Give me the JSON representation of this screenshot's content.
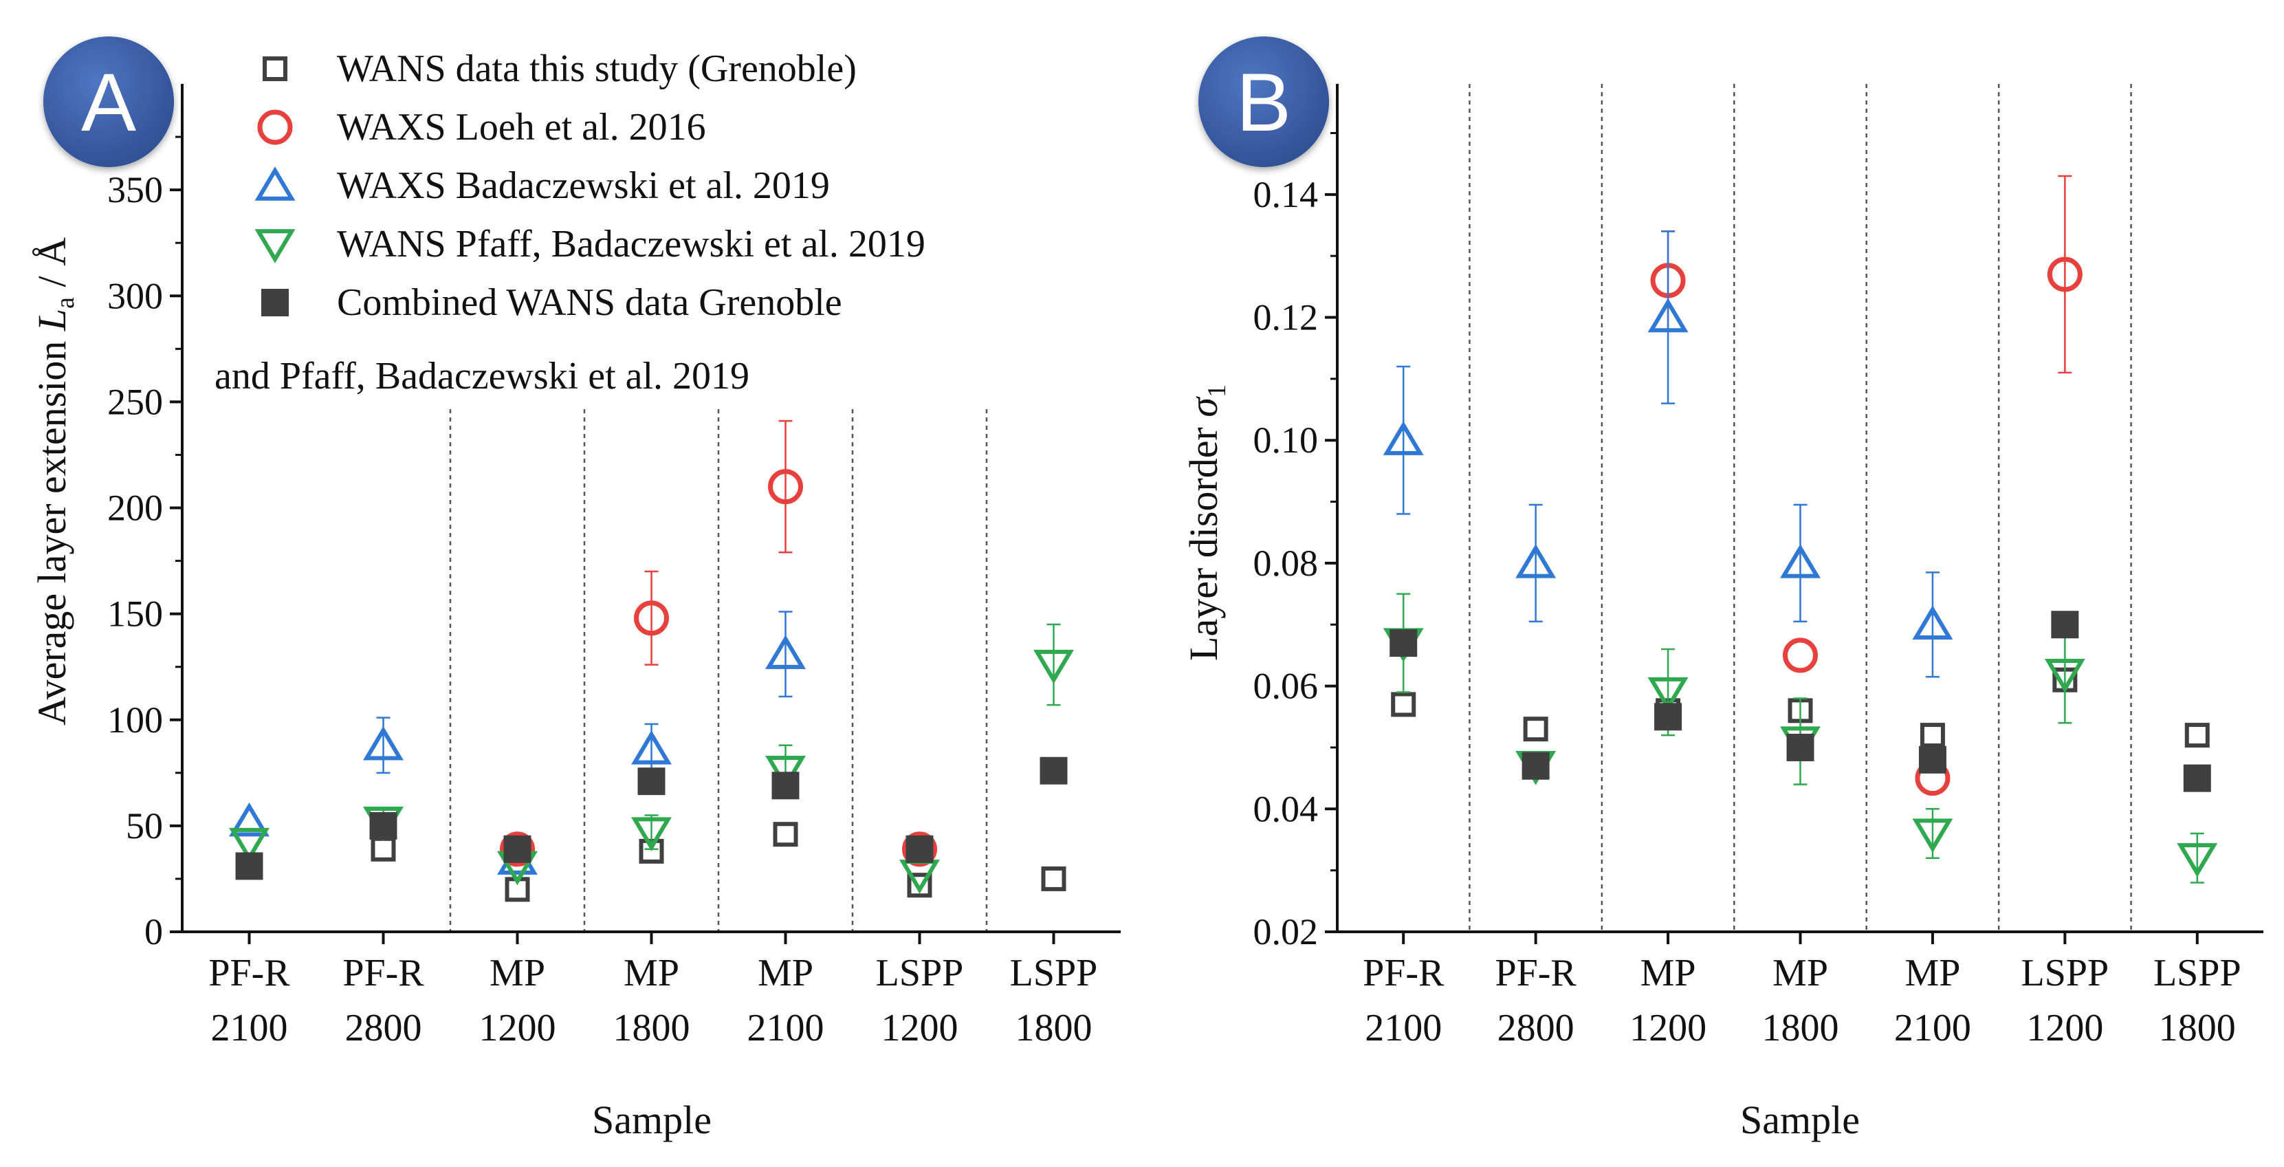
{
  "colors": {
    "wans_grenoble": "#404040",
    "waxs_loeh": "#e8403c",
    "waxs_badaczewski": "#2f78d6",
    "wans_pfaff": "#2fa84f",
    "combined": "#404040",
    "badge": "#3a5ea8",
    "divider": "#555555"
  },
  "legend": {
    "items": [
      {
        "key": "wans_grenoble",
        "label": "WANS data this study (Grenoble)",
        "marker": "open-square-icon"
      },
      {
        "key": "waxs_loeh",
        "label": "WAXS Loeh et al. 2016",
        "marker": "open-circle-icon"
      },
      {
        "key": "waxs_badaczewski",
        "label": "WAXS Badaczewski et al. 2019",
        "marker": "open-triangle-up-icon"
      },
      {
        "key": "wans_pfaff",
        "label": "WANS Pfaff, Badaczewski et al. 2019",
        "marker": "open-triangle-down-icon"
      },
      {
        "key": "combined",
        "label": "Combined WANS data Grenoble",
        "marker": "filled-square-icon"
      }
    ],
    "continuation": "and Pfaff, Badaczewski et al. 2019"
  },
  "chart_data": [
    {
      "panel": "A",
      "type": "scatter",
      "ylabel_main": "Average layer extension",
      "ylabel_symbol": "L",
      "ylabel_subscript": "a",
      "ylabel_unit": " / Å",
      "xlabel": "Sample",
      "ylim": [
        0,
        400
      ],
      "yticks": [
        0,
        50,
        100,
        150,
        200,
        250,
        300,
        350
      ],
      "categories": [
        [
          "PF-R",
          "2100"
        ],
        [
          "PF-R",
          "2800"
        ],
        [
          "MP",
          "1200"
        ],
        [
          "MP",
          "1800"
        ],
        [
          "MP",
          "2100"
        ],
        [
          "LSPP",
          "1200"
        ],
        [
          "LSPP",
          "1800"
        ]
      ],
      "dividers_after_index": [
        1,
        2,
        3,
        4,
        5
      ],
      "series": [
        {
          "key": "wans_grenoble",
          "name": "WANS data this study (Grenoble)",
          "values": [
            null,
            39,
            20,
            38,
            46,
            22,
            25
          ],
          "errors": [
            null,
            null,
            null,
            null,
            null,
            null,
            null
          ]
        },
        {
          "key": "waxs_loeh",
          "name": "WAXS Loeh et al. 2016",
          "values": [
            null,
            null,
            39,
            148,
            210,
            39,
            null
          ],
          "errors": [
            null,
            null,
            null,
            22,
            31,
            null,
            null
          ]
        },
        {
          "key": "waxs_badaczewski",
          "name": "WAXS Badaczewski et al. 2019",
          "values": [
            52,
            88,
            34,
            86,
            131,
            null,
            null
          ],
          "errors": [
            null,
            13,
            null,
            12,
            20,
            null,
            null
          ]
        },
        {
          "key": "wans_pfaff",
          "name": "WANS Pfaff, Badaczewski et al. 2019",
          "values": [
            42,
            52,
            31,
            47,
            76,
            27,
            126
          ],
          "errors": [
            null,
            6,
            null,
            8,
            12,
            null,
            19
          ]
        },
        {
          "key": "combined",
          "name": "Combined WANS data Grenoble and Pfaff, Badaczewski et al. 2019",
          "values": [
            31,
            50,
            39,
            71,
            69,
            39,
            76
          ],
          "errors": [
            null,
            null,
            null,
            null,
            null,
            null,
            null
          ]
        }
      ]
    },
    {
      "panel": "B",
      "type": "scatter",
      "ylabel_main": "Layer disorder",
      "ylabel_symbol": "σ",
      "ylabel_subscript": "1",
      "xlabel": "Sample",
      "ylim": [
        0.02,
        0.158
      ],
      "yticks": [
        "0.02",
        "0.04",
        "0.06",
        "0.08",
        "0.10",
        "0.12",
        "0.14"
      ],
      "categories": [
        [
          "PF-R",
          "2100"
        ],
        [
          "PF-R",
          "2800"
        ],
        [
          "MP",
          "1200"
        ],
        [
          "MP",
          "1800"
        ],
        [
          "MP",
          "2100"
        ],
        [
          "LSPP",
          "1200"
        ],
        [
          "LSPP",
          "1800"
        ]
      ],
      "dividers_after_index": [
        0,
        1,
        2,
        3,
        4,
        5
      ],
      "series": [
        {
          "key": "wans_grenoble",
          "name": "WANS data this study (Grenoble)",
          "values": [
            0.057,
            0.053,
            0.056,
            0.056,
            0.052,
            0.061,
            0.052
          ],
          "errors": [
            null,
            null,
            null,
            null,
            null,
            null,
            null
          ]
        },
        {
          "key": "waxs_loeh",
          "name": "WAXS Loeh et al. 2016",
          "values": [
            null,
            null,
            0.126,
            0.065,
            0.045,
            0.127,
            null
          ],
          "errors": [
            null,
            null,
            0.008,
            null,
            null,
            0.016,
            null
          ]
        },
        {
          "key": "waxs_badaczewski",
          "name": "WAXS Badaczewski et al. 2019",
          "values": [
            0.1,
            0.08,
            0.12,
            0.08,
            0.07,
            null,
            null
          ],
          "errors": [
            0.012,
            0.0095,
            0.014,
            0.0095,
            0.0085,
            null,
            null
          ]
        },
        {
          "key": "wans_pfaff",
          "name": "WANS Pfaff, Badaczewski et al. 2019",
          "values": [
            0.067,
            0.047,
            0.059,
            0.051,
            0.036,
            0.062,
            0.032
          ],
          "errors": [
            0.008,
            null,
            0.007,
            0.007,
            0.004,
            0.008,
            0.004
          ]
        },
        {
          "key": "combined",
          "name": "Combined WANS data Grenoble and Pfaff, Badaczewski et al. 2019",
          "values": [
            0.067,
            0.047,
            0.055,
            0.05,
            0.048,
            0.07,
            0.045
          ],
          "errors": [
            null,
            null,
            null,
            null,
            null,
            null,
            null
          ]
        }
      ]
    }
  ]
}
